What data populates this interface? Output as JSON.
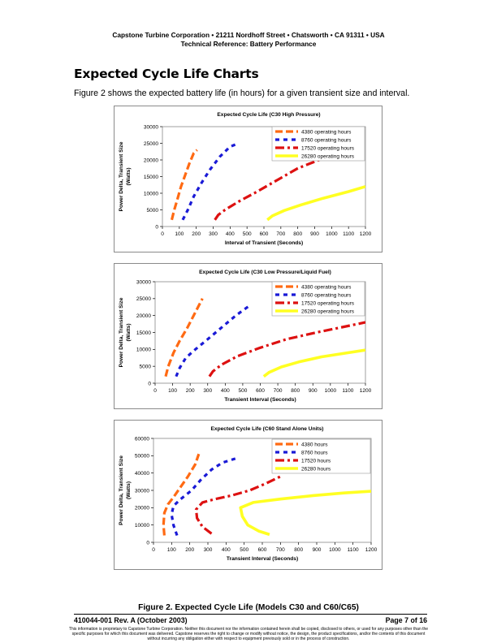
{
  "header": {
    "line1": "Capstone Turbine Corporation • 21211 Nordhoff Street • Chatsworth • CA 91311 • USA",
    "line2": "Technical Reference: Battery Performance"
  },
  "section_title": "Expected Cycle Life Charts",
  "intro_text": "Figure 2 shows the expected battery life (in hours) for a given transient size and interval.",
  "series_colors": [
    "#ff6a13",
    "#1a1ad6",
    "#dd1111",
    "#ffff22"
  ],
  "chart_data": [
    {
      "type": "line",
      "title": "Expected Cycle Life (C30 High Pressure)",
      "xlabel": "Interval of Transient (Seconds)",
      "ylabel_line1": "Power Delta, Transient Size",
      "ylabel_line2": "(Watts)",
      "xlim": [
        0,
        1200
      ],
      "ylim": [
        0,
        30000
      ],
      "xticks": [
        "0",
        "100",
        "200",
        "300",
        "400",
        "500",
        "600",
        "700",
        "800",
        "900",
        "1000",
        "1100",
        "1200"
      ],
      "yticks": [
        "0",
        "5000",
        "10000",
        "15000",
        "20000",
        "25000",
        "30000"
      ],
      "legend_position": "top-right",
      "series": [
        {
          "name": "4380 operating hours",
          "points": [
            [
              55,
              2000
            ],
            [
              70,
              5000
            ],
            [
              90,
              8500
            ],
            [
              110,
              12000
            ],
            [
              135,
              15500
            ],
            [
              160,
              19000
            ],
            [
              185,
              22000
            ],
            [
              205,
              23000
            ]
          ]
        },
        {
          "name": "8760 operating hours",
          "points": [
            [
              120,
              2000
            ],
            [
              150,
              5000
            ],
            [
              185,
              9000
            ],
            [
              230,
              13000
            ],
            [
              280,
              17000
            ],
            [
              340,
              21000
            ],
            [
              400,
              24000
            ],
            [
              450,
              25000
            ]
          ]
        },
        {
          "name": "17520 operating hours",
          "points": [
            [
              310,
              2000
            ],
            [
              330,
              3500
            ],
            [
              370,
              5000
            ],
            [
              450,
              7500
            ],
            [
              560,
              10500
            ],
            [
              680,
              14000
            ],
            [
              800,
              17500
            ],
            [
              950,
              20500
            ]
          ]
        },
        {
          "name": "26280 operating hours",
          "points": [
            [
              620,
              2000
            ],
            [
              650,
              3200
            ],
            [
              720,
              4800
            ],
            [
              820,
              6500
            ],
            [
              950,
              8500
            ],
            [
              1100,
              10500
            ],
            [
              1200,
              12000
            ]
          ]
        }
      ]
    },
    {
      "type": "line",
      "title": "Expected Cycle Life (C30 Low Pressure/Liquid Fuel)",
      "xlabel": "Transient Interval (Seconds)",
      "ylabel_line1": "Power Delta, Transient Size",
      "ylabel_line2": "(Watts)",
      "xlim": [
        0,
        1200
      ],
      "ylim": [
        0,
        30000
      ],
      "xticks": [
        "0",
        "100",
        "200",
        "300",
        "400",
        "500",
        "600",
        "700",
        "800",
        "900",
        "1000",
        "1100",
        "1200"
      ],
      "yticks": [
        "0",
        "5000",
        "10000",
        "15000",
        "20000",
        "25000",
        "30000"
      ],
      "legend_position": "top-right",
      "series": [
        {
          "name": "4380 operating hours",
          "points": [
            [
              60,
              2000
            ],
            [
              75,
              5000
            ],
            [
              105,
              9000
            ],
            [
              140,
              12500
            ],
            [
              185,
              16500
            ],
            [
              230,
              21000
            ],
            [
              270,
              25000
            ]
          ]
        },
        {
          "name": "8760 operating hours",
          "points": [
            [
              120,
              2000
            ],
            [
              140,
              4500
            ],
            [
              175,
              7500
            ],
            [
              230,
              10000
            ],
            [
              300,
              13000
            ],
            [
              380,
              16500
            ],
            [
              460,
              20000
            ],
            [
              540,
              23000
            ]
          ]
        },
        {
          "name": "17520 operating hours",
          "points": [
            [
              310,
              2000
            ],
            [
              330,
              3500
            ],
            [
              380,
              5500
            ],
            [
              470,
              8000
            ],
            [
              600,
              10500
            ],
            [
              750,
              13000
            ],
            [
              920,
              15000
            ],
            [
              1060,
              16500
            ],
            [
              1200,
              18000
            ]
          ]
        },
        {
          "name": "26280 operating hours",
          "points": [
            [
              620,
              2000
            ],
            [
              650,
              3200
            ],
            [
              720,
              4800
            ],
            [
              820,
              6300
            ],
            [
              950,
              7800
            ],
            [
              1100,
              9000
            ],
            [
              1200,
              9800
            ]
          ]
        }
      ]
    },
    {
      "type": "line",
      "title": "Expected Cycle Life (C60 Stand Alone Units)",
      "xlabel": "Transient Interval (Seconds)",
      "ylabel_line1": "Power Delta, Transient Size",
      "ylabel_line2": "(Watts)",
      "xlim": [
        0,
        1200
      ],
      "ylim": [
        0,
        60000
      ],
      "xticks": [
        "0",
        "100",
        "200",
        "300",
        "400",
        "500",
        "600",
        "700",
        "800",
        "900",
        "1000",
        "1100",
        "1200"
      ],
      "yticks": [
        "0",
        "10000",
        "20000",
        "30000",
        "40000",
        "50000",
        "60000"
      ],
      "legend_position": "top-right",
      "series": [
        {
          "name": "4380 hours",
          "points": [
            [
              60,
              4000
            ],
            [
              55,
              10000
            ],
            [
              60,
              17000
            ],
            [
              80,
              22000
            ],
            [
              110,
              26000
            ],
            [
              150,
              32000
            ],
            [
              190,
              38000
            ],
            [
              230,
              45000
            ],
            [
              250,
              51000
            ]
          ]
        },
        {
          "name": "8760 hours",
          "points": [
            [
              130,
              4000
            ],
            [
              110,
              10000
            ],
            [
              100,
              16000
            ],
            [
              110,
              21000
            ],
            [
              150,
              25000
            ],
            [
              210,
              30000
            ],
            [
              260,
              36000
            ],
            [
              320,
              42000
            ],
            [
              380,
              46000
            ],
            [
              470,
              49000
            ]
          ]
        },
        {
          "name": "17520 hours",
          "points": [
            [
              320,
              5000
            ],
            [
              270,
              9000
            ],
            [
              240,
              14000
            ],
            [
              235,
              19000
            ],
            [
              270,
              23000
            ],
            [
              340,
              25000
            ],
            [
              430,
              27000
            ],
            [
              530,
              30000
            ],
            [
              620,
              34000
            ],
            [
              700,
              38000
            ]
          ]
        },
        {
          "name": "26280 hours",
          "points": [
            [
              640,
              4500
            ],
            [
              580,
              6500
            ],
            [
              520,
              10000
            ],
            [
              490,
              15000
            ],
            [
              480,
              20000
            ],
            [
              550,
              23000
            ],
            [
              700,
              25000
            ],
            [
              880,
              27000
            ],
            [
              1050,
              28500
            ],
            [
              1200,
              29500
            ]
          ]
        }
      ]
    }
  ],
  "figure_caption": "Figure 2.  Expected Cycle Life (Models C30 and C60/C65)",
  "footer": {
    "doc_id": "410044-001 Rev. A (October 2003)",
    "page": "Page 7 of 16",
    "disclaimer": "This information is proprietary to Capstone Turbine Corporation. Neither this document nor the information contained herein shall be copied, disclosed to others, or used for any purposes other than the specific purposes for which this document was delivered. Capstone reserves the right to change or modify without notice, the design, the product specifications, and/or the contents of this document without incurring any obligation either with respect to equipment previously sold or in the process of construction."
  }
}
